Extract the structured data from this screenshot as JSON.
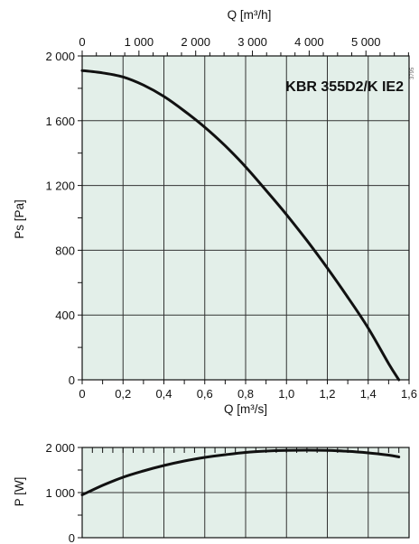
{
  "chart_data": [
    {
      "type": "line",
      "annotation": "KBR 355D2/K IE2",
      "xlabel": "Q [m³/s]",
      "ylabel": "Ps [Pa]",
      "top_xlabel": "Q [m³/h]",
      "xlim": [
        0,
        1.6
      ],
      "ylim": [
        0,
        2000
      ],
      "top_xlim": [
        0,
        5760
      ],
      "x_ticks": [
        0,
        0.2,
        0.4,
        0.6,
        0.8,
        1.0,
        1.2,
        1.4,
        1.6
      ],
      "x_tick_labels": [
        "0",
        "0,2",
        "0,4",
        "0,6",
        "0,8",
        "1,0",
        "1,2",
        "1,4",
        "1,6"
      ],
      "y_ticks": [
        0,
        400,
        800,
        1200,
        1600,
        2000
      ],
      "y_tick_labels": [
        "0",
        "400",
        "800",
        "1 200",
        "1 600",
        "2 000"
      ],
      "top_ticks": [
        0,
        1000,
        2000,
        3000,
        4000,
        5000
      ],
      "top_tick_labels": [
        "0",
        "1 000",
        "2 000",
        "3 000",
        "4 000",
        "5 000"
      ],
      "grid": true,
      "plot_color": "#e3efe9",
      "line_color": "#111111",
      "series": [
        {
          "x": [
            0,
            0.1,
            0.2,
            0.3,
            0.4,
            0.5,
            0.6,
            0.7,
            0.8,
            0.9,
            1.0,
            1.1,
            1.2,
            1.3,
            1.4,
            1.5,
            1.55
          ],
          "values": [
            1910,
            1895,
            1870,
            1820,
            1750,
            1660,
            1560,
            1445,
            1315,
            1170,
            1020,
            860,
            690,
            510,
            320,
            100,
            0
          ]
        }
      ]
    },
    {
      "type": "line",
      "ylabel": "P [W]",
      "xlim": [
        0,
        1.6
      ],
      "ylim": [
        0,
        2000
      ],
      "y_ticks": [
        0,
        1000,
        2000
      ],
      "y_tick_labels": [
        "0",
        "1 000",
        "2 000"
      ],
      "grid": true,
      "plot_color": "#e3efe9",
      "line_color": "#111111",
      "series": [
        {
          "x": [
            0,
            0.1,
            0.2,
            0.3,
            0.4,
            0.5,
            0.6,
            0.7,
            0.8,
            0.9,
            1.0,
            1.1,
            1.2,
            1.3,
            1.4,
            1.5,
            1.55
          ],
          "values": [
            950,
            1160,
            1340,
            1480,
            1600,
            1700,
            1780,
            1840,
            1890,
            1920,
            1935,
            1940,
            1935,
            1915,
            1880,
            1830,
            1790
          ]
        }
      ]
    }
  ]
}
